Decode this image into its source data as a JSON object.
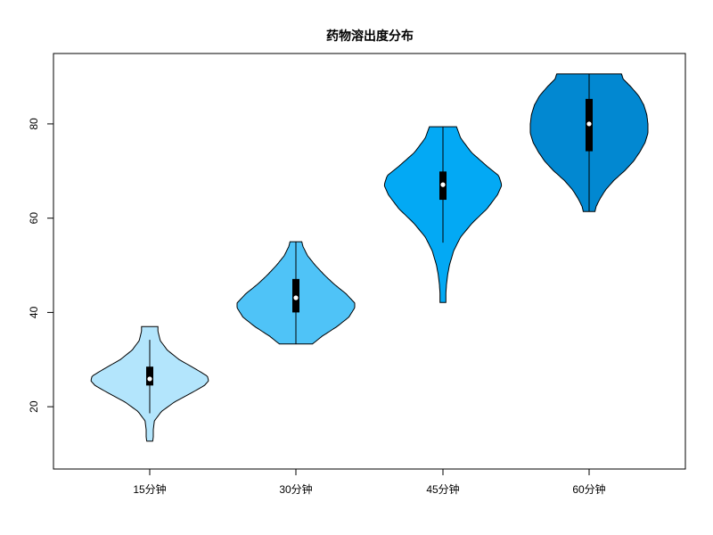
{
  "chart_data": {
    "type": "violin",
    "title": "药物溶出度分布",
    "xlabel": "",
    "ylabel": "",
    "categories": [
      "15分钟",
      "30分钟",
      "45分钟",
      "60分钟"
    ],
    "ylim": [
      10,
      92
    ],
    "y_ticks": [
      "20",
      "40",
      "60",
      "80"
    ],
    "grid": false,
    "legend": "none",
    "colors": [
      "#b3e5fc",
      "#4fc3f7",
      "#03a9f4",
      "#0288d1"
    ],
    "series": [
      {
        "category": "15分钟",
        "range": [
          12.7,
          37.0
        ],
        "median": 25.9,
        "q1": 24.5,
        "q3": 28.5,
        "whisker": [
          18.6,
          34.2
        ],
        "density_profile": [
          [
            12.7,
            0.05
          ],
          [
            13.5,
            0.06
          ],
          [
            15,
            0.06
          ],
          [
            17,
            0.08
          ],
          [
            19,
            0.2
          ],
          [
            21,
            0.42
          ],
          [
            23,
            0.72
          ],
          [
            24.5,
            0.93
          ],
          [
            25.5,
            1.0
          ],
          [
            26.5,
            0.98
          ],
          [
            28,
            0.78
          ],
          [
            30,
            0.5
          ],
          [
            32,
            0.3
          ],
          [
            34,
            0.18
          ],
          [
            36,
            0.14
          ],
          [
            37,
            0.14
          ]
        ]
      },
      {
        "category": "30分钟",
        "range": [
          33.3,
          55.0
        ],
        "median": 43.1,
        "q1": 40.0,
        "q3": 47.1,
        "whisker": [
          33.3,
          55.0
        ],
        "density_profile": [
          [
            33.3,
            0.28
          ],
          [
            35,
            0.45
          ],
          [
            37,
            0.7
          ],
          [
            39,
            0.9
          ],
          [
            41,
            1.0
          ],
          [
            42,
            1.0
          ],
          [
            44,
            0.85
          ],
          [
            46,
            0.65
          ],
          [
            48,
            0.48
          ],
          [
            50,
            0.33
          ],
          [
            52,
            0.2
          ],
          [
            54,
            0.12
          ],
          [
            55,
            0.1
          ]
        ]
      },
      {
        "category": "45分钟",
        "range": [
          42.1,
          79.4
        ],
        "median": 67.1,
        "q1": 63.9,
        "q3": 69.9,
        "whisker": [
          54.8,
          79.4
        ],
        "density_profile": [
          [
            42.1,
            0.05
          ],
          [
            44,
            0.05
          ],
          [
            46,
            0.06
          ],
          [
            48,
            0.08
          ],
          [
            50,
            0.11
          ],
          [
            53,
            0.18
          ],
          [
            56,
            0.3
          ],
          [
            59,
            0.5
          ],
          [
            62,
            0.75
          ],
          [
            65,
            0.93
          ],
          [
            67,
            1.0
          ],
          [
            69,
            0.95
          ],
          [
            71,
            0.75
          ],
          [
            74,
            0.48
          ],
          [
            77,
            0.3
          ],
          [
            79.4,
            0.23
          ]
        ]
      },
      {
        "category": "60分钟",
        "range": [
          61.4,
          90.6
        ],
        "median": 80.0,
        "q1": 74.2,
        "q3": 85.3,
        "whisker": [
          61.4,
          90.6
        ],
        "density_profile": [
          [
            61.4,
            0.1
          ],
          [
            62.5,
            0.12
          ],
          [
            64,
            0.18
          ],
          [
            66,
            0.28
          ],
          [
            68,
            0.42
          ],
          [
            70,
            0.6
          ],
          [
            72,
            0.75
          ],
          [
            74,
            0.86
          ],
          [
            76,
            0.95
          ],
          [
            78,
            1.0
          ],
          [
            80,
            1.0
          ],
          [
            82,
            0.98
          ],
          [
            84,
            0.93
          ],
          [
            86,
            0.84
          ],
          [
            88,
            0.7
          ],
          [
            89.5,
            0.58
          ],
          [
            90.6,
            0.55
          ]
        ]
      }
    ]
  }
}
